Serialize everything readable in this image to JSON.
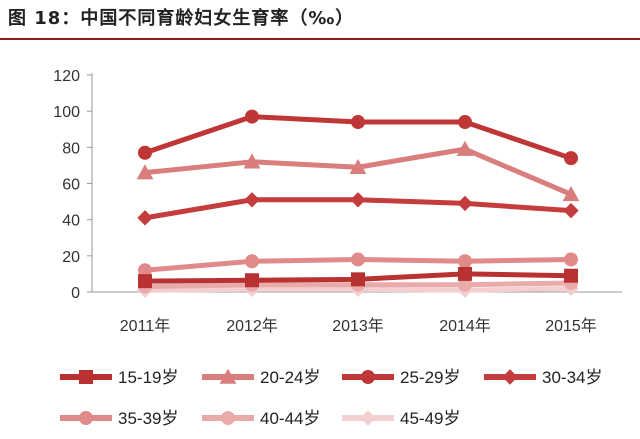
{
  "figure_title": "图 18：中国不同育龄妇女生育率（‰）",
  "chart_data": {
    "type": "line",
    "x": [
      "2011年",
      "2012年",
      "2013年",
      "2014年",
      "2015年"
    ],
    "ylim": [
      0,
      120
    ],
    "yticks": [
      "0",
      "20",
      "40",
      "60",
      "80",
      "100",
      "120"
    ],
    "grid": false,
    "legend_position": "bottom",
    "series": [
      {
        "name": "15-19岁",
        "values": [
          6,
          6.5,
          7,
          10,
          9
        ],
        "color": "#b83232",
        "marker": "square"
      },
      {
        "name": "20-24岁",
        "values": [
          66,
          72,
          69,
          79,
          54
        ],
        "color": "#d97d7d",
        "marker": "triangle"
      },
      {
        "name": "25-29岁",
        "values": [
          77,
          97,
          94,
          94,
          74
        ],
        "color": "#bf3636",
        "marker": "circle"
      },
      {
        "name": "30-34岁",
        "values": [
          41,
          51,
          51,
          49,
          45
        ],
        "color": "#c43c3c",
        "marker": "diamond"
      },
      {
        "name": "35-39岁",
        "values": [
          12,
          17,
          18,
          17,
          18
        ],
        "color": "#e08a8a",
        "marker": "circle"
      },
      {
        "name": "40-44岁",
        "values": [
          3,
          4,
          4,
          4,
          5
        ],
        "color": "#e9aaaa",
        "marker": "circle"
      },
      {
        "name": "45-49岁",
        "values": [
          1,
          1.5,
          1.5,
          1,
          2
        ],
        "color": "#f3cfcf",
        "marker": "diamond"
      }
    ]
  }
}
